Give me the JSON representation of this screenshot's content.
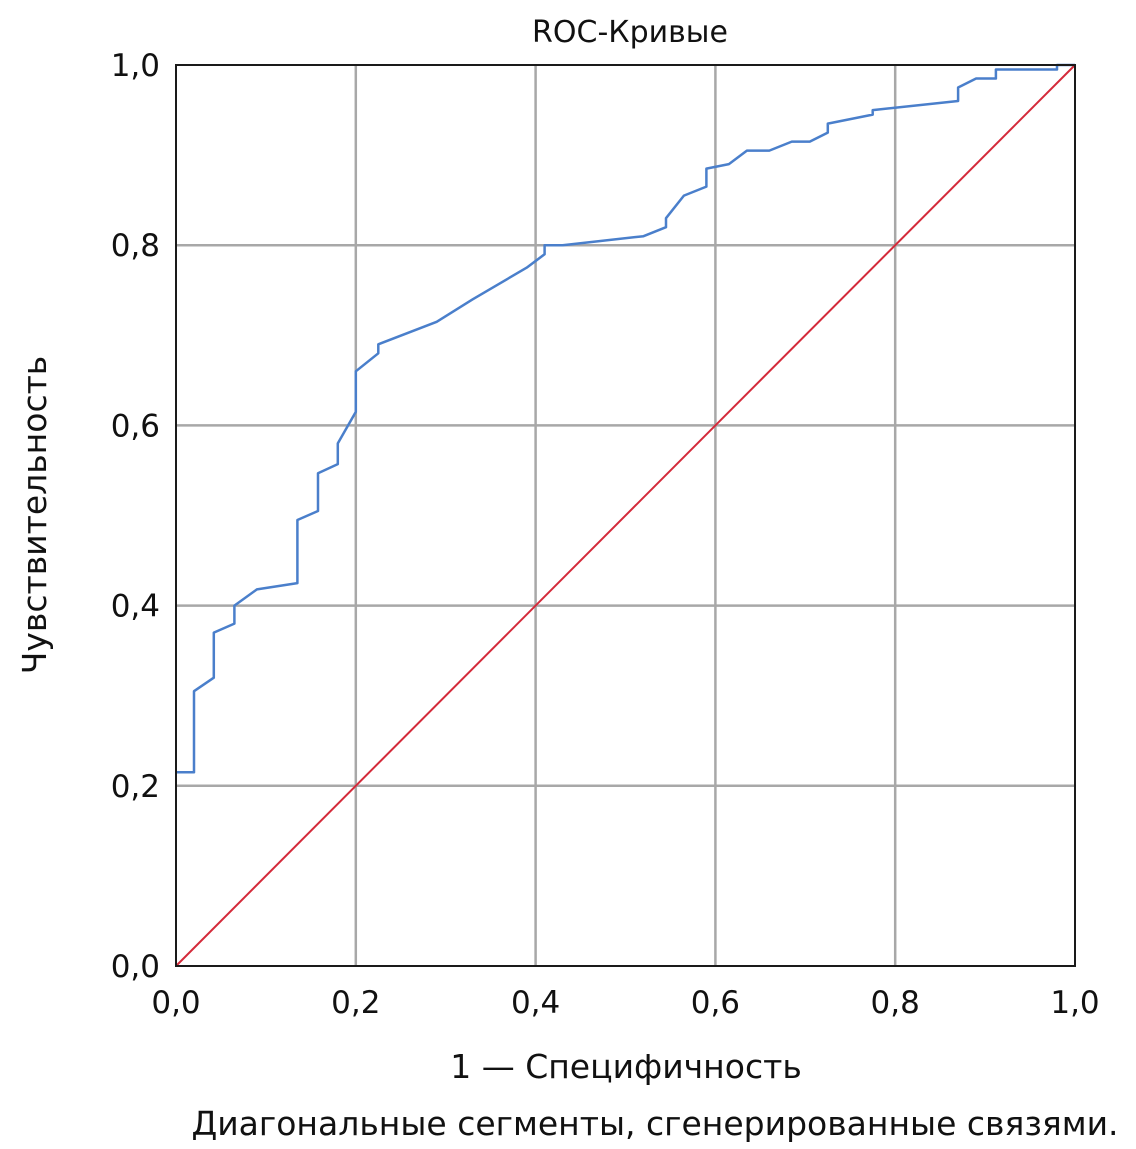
{
  "chart_data": {
    "type": "line",
    "title": "ROC-Кривые",
    "xlabel": "1 — Специфичность",
    "ylabel": "Чувствительность",
    "footnote": "Диагональные сегменты, сгенерированные связями.",
    "xlim": [
      0,
      1
    ],
    "ylim": [
      0,
      1
    ],
    "x_ticks": [
      "0,0",
      "0,2",
      "0,4",
      "0,6",
      "0,8",
      "1,0"
    ],
    "y_ticks": [
      "0,0",
      "0,2",
      "0,4",
      "0,6",
      "0,8",
      "1,0"
    ],
    "grid": true,
    "series": [
      {
        "color": "#4a7fcb",
        "points": [
          [
            0.0,
            0.215
          ],
          [
            0.02,
            0.215
          ],
          [
            0.02,
            0.3
          ],
          [
            0.02,
            0.305
          ],
          [
            0.042,
            0.32
          ],
          [
            0.042,
            0.37
          ],
          [
            0.065,
            0.38
          ],
          [
            0.065,
            0.4
          ],
          [
            0.09,
            0.418
          ],
          [
            0.135,
            0.425
          ],
          [
            0.135,
            0.495
          ],
          [
            0.158,
            0.505
          ],
          [
            0.158,
            0.547
          ],
          [
            0.18,
            0.557
          ],
          [
            0.18,
            0.58
          ],
          [
            0.2,
            0.615
          ],
          [
            0.2,
            0.66
          ],
          [
            0.225,
            0.68
          ],
          [
            0.225,
            0.69
          ],
          [
            0.29,
            0.715
          ],
          [
            0.33,
            0.74
          ],
          [
            0.39,
            0.775
          ],
          [
            0.41,
            0.79
          ],
          [
            0.41,
            0.8
          ],
          [
            0.43,
            0.8
          ],
          [
            0.52,
            0.81
          ],
          [
            0.545,
            0.82
          ],
          [
            0.545,
            0.83
          ],
          [
            0.565,
            0.855
          ],
          [
            0.59,
            0.865
          ],
          [
            0.59,
            0.885
          ],
          [
            0.615,
            0.89
          ],
          [
            0.635,
            0.905
          ],
          [
            0.66,
            0.905
          ],
          [
            0.685,
            0.915
          ],
          [
            0.705,
            0.915
          ],
          [
            0.725,
            0.925
          ],
          [
            0.725,
            0.935
          ],
          [
            0.775,
            0.945
          ],
          [
            0.775,
            0.95
          ],
          [
            0.87,
            0.96
          ],
          [
            0.87,
            0.975
          ],
          [
            0.89,
            0.985
          ],
          [
            0.912,
            0.985
          ],
          [
            0.912,
            0.995
          ],
          [
            0.98,
            0.995
          ],
          [
            0.98,
            1.0
          ],
          [
            1.0,
            1.0
          ]
        ]
      },
      {
        "color": "#d42a3a",
        "points": [
          [
            0,
            0
          ],
          [
            1,
            1
          ]
        ]
      }
    ]
  }
}
